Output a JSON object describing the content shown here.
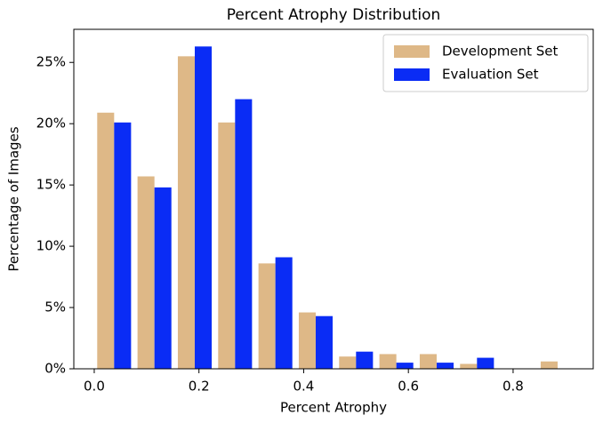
{
  "chart_data": {
    "type": "bar",
    "title": "Percent Atrophy Distribution",
    "x_label": "Percent Atrophy",
    "y_label": "Percentage of Images",
    "x": [
      0.038,
      0.115,
      0.192,
      0.269,
      0.346,
      0.423,
      0.5,
      0.577,
      0.654,
      0.731,
      0.808,
      0.885
    ],
    "series": [
      {
        "name": "Development Set",
        "color": "#deb887",
        "values": [
          20.9,
          15.7,
          25.5,
          20.1,
          8.6,
          4.6,
          1.0,
          1.2,
          1.2,
          0.4,
          0,
          0.6
        ]
      },
      {
        "name": "Evaluation Set",
        "color": "#0a2cf5",
        "values": [
          20.1,
          14.8,
          26.3,
          22.0,
          9.1,
          4.3,
          1.4,
          0.5,
          0.5,
          0.9,
          0,
          0
        ]
      }
    ],
    "xlim": [
      -0.039,
      0.953
    ],
    "ylim": [
      0,
      27.7
    ],
    "xticks": [
      {
        "value": 0,
        "label": "0.0"
      },
      0.2,
      0.4,
      0.6,
      0.8
    ],
    "yticks": [
      {
        "value": 0,
        "label": "0%"
      },
      {
        "value": 5,
        "label": "5%"
      },
      {
        "value": 10,
        "label": "10%"
      },
      {
        "value": 15,
        "label": "15%"
      },
      {
        "value": 20,
        "label": "20%"
      },
      {
        "value": 25,
        "label": "25%"
      }
    ],
    "grid": false,
    "legend": "upper right"
  }
}
